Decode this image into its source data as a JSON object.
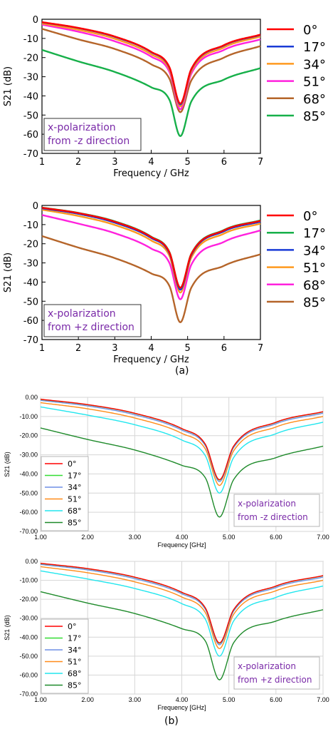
{
  "figure": {
    "label_a": "(a)",
    "label_b": "(b)"
  },
  "chart_data": [
    {
      "type": "line",
      "style": "cst",
      "xlabel": "Frequency / GHz",
      "ylabel": "S21 (dB)",
      "xlim": [
        1,
        7
      ],
      "ylim": [
        -70,
        0
      ],
      "x_ticks": [
        1,
        2,
        3,
        4,
        5,
        6,
        7
      ],
      "y_ticks": [
        0,
        -10,
        -20,
        -30,
        -40,
        -50,
        -60,
        -70
      ],
      "tick_labels_y": [
        "0",
        "-10",
        "-20",
        "-30",
        "-40",
        "-50",
        "-60",
        "-70"
      ],
      "grid": false,
      "legend_position": "outside-right",
      "annotation": [
        "x-polarization",
        "from -z direction"
      ],
      "annotation_position": "bottom-left",
      "annotation_color": "#7a2aa8",
      "x": [
        1,
        2,
        3,
        4,
        4.5,
        4.8,
        5.1,
        6,
        7
      ],
      "series": [
        {
          "name": "0°",
          "color": "#ff0000",
          "values": [
            -1.5,
            -4.5,
            -9,
            -17,
            -25,
            -44,
            -26,
            -13.5,
            -8
          ]
        },
        {
          "name": "17°",
          "color": "#1a3bd6",
          "values": [
            -1.6,
            -4.6,
            -9.2,
            -17.2,
            -25.3,
            -44.5,
            -26.3,
            -13.7,
            -8.2
          ]
        },
        {
          "name": "34°",
          "color": "#ff9a1f",
          "values": [
            -2.2,
            -5.5,
            -10.2,
            -18.3,
            -26.3,
            -45.5,
            -27.3,
            -14.7,
            -9
          ]
        },
        {
          "name": "51°",
          "color": "#ff22dd",
          "values": [
            -2.8,
            -6.5,
            -11.5,
            -19.5,
            -27.5,
            -47,
            -28.5,
            -16,
            -10.5
          ]
        },
        {
          "name": "68°",
          "color": "#b5652a",
          "values": [
            -5,
            -10.5,
            -15.5,
            -23.5,
            -31,
            -48.5,
            -32,
            -20,
            -14
          ]
        },
        {
          "name": "85°",
          "color": "#17b04a",
          "values": [
            -16,
            -22,
            -27.5,
            -35.5,
            -42,
            -61,
            -43,
            -31.5,
            -25.5
          ]
        }
      ]
    },
    {
      "type": "line",
      "style": "cst",
      "xlabel": "Frequency / GHz",
      "ylabel": "S21 (dB)",
      "xlim": [
        1,
        7
      ],
      "ylim": [
        -70,
        0
      ],
      "x_ticks": [
        1,
        2,
        3,
        4,
        5,
        6,
        7
      ],
      "y_ticks": [
        0,
        -10,
        -20,
        -30,
        -40,
        -50,
        -60,
        -70
      ],
      "tick_labels_y": [
        "0",
        "-10",
        "-20",
        "-30",
        "-40",
        "-50",
        "-60",
        "-70"
      ],
      "grid": false,
      "legend_position": "outside-right",
      "annotation": [
        "x-polarization",
        "from +z direction"
      ],
      "annotation_position": "bottom-left",
      "annotation_color": "#7a2aa8",
      "x": [
        1,
        2,
        3,
        4,
        4.5,
        4.8,
        5.1,
        6,
        7
      ],
      "series": [
        {
          "name": "0°",
          "color": "#ff0000",
          "values": [
            -1.2,
            -4,
            -8.5,
            -16.5,
            -24.5,
            -43,
            -25.5,
            -13,
            -8
          ]
        },
        {
          "name": "17°",
          "color": "#17b04a",
          "values": [
            -1.1,
            -3.9,
            -8.3,
            -16.3,
            -24.3,
            -43,
            -25.3,
            -12.8,
            -7.8
          ]
        },
        {
          "name": "34°",
          "color": "#1a3bd6",
          "values": [
            -1.5,
            -4.4,
            -9,
            -17,
            -25,
            -44,
            -26,
            -13.5,
            -8.5
          ]
        },
        {
          "name": "51°",
          "color": "#ff9a1f",
          "values": [
            -2.2,
            -5.5,
            -10.2,
            -18.3,
            -26.3,
            -45.5,
            -27.3,
            -14.7,
            -9.5
          ]
        },
        {
          "name": "68°",
          "color": "#ff22dd",
          "values": [
            -5,
            -9.5,
            -14.5,
            -22.5,
            -30,
            -49,
            -31,
            -19,
            -13
          ]
        },
        {
          "name": "85°",
          "color": "#b5652a",
          "values": [
            -16,
            -22,
            -27.5,
            -35.5,
            -42,
            -61,
            -43,
            -31.5,
            -25.5
          ]
        }
      ]
    },
    {
      "type": "line",
      "style": "hfss",
      "xlabel": "Frequency [GHz]",
      "ylabel": "S21 (dB)",
      "xlim": [
        1,
        7
      ],
      "ylim": [
        -70,
        0
      ],
      "x_ticks": [
        1,
        2,
        3,
        4,
        5,
        6,
        7
      ],
      "tick_labels_x": [
        "1.00",
        "2.00",
        "3.00",
        "4.00",
        "5.00",
        "6.00",
        "7.00"
      ],
      "y_ticks": [
        0,
        -10,
        -20,
        -30,
        -40,
        -50,
        -60,
        -70
      ],
      "tick_labels_y": [
        "0.00",
        "-10.00",
        "-20.00",
        "-30.00",
        "-40.00",
        "-50.00",
        "-60.00",
        "-70.00"
      ],
      "grid": true,
      "legend_position": "bottom-left",
      "annotation": [
        "x-polarization",
        "from -z direction"
      ],
      "annotation_position": "bottom-right",
      "annotation_color": "#7a2aa8",
      "x": [
        1,
        2,
        3,
        4,
        4.5,
        4.8,
        5.1,
        6,
        7
      ],
      "series": [
        {
          "name": "0°",
          "color": "#ff0000",
          "values": [
            -1,
            -3.8,
            -8.3,
            -16.3,
            -24.5,
            -43,
            -25.5,
            -13,
            -7.5
          ]
        },
        {
          "name": "17°",
          "color": "#33dd33",
          "values": [
            -1.1,
            -3.9,
            -8.4,
            -16.4,
            -24.6,
            -43.2,
            -25.6,
            -13.1,
            -7.6
          ]
        },
        {
          "name": "34°",
          "color": "#6f8fe6",
          "values": [
            -1.6,
            -4.5,
            -9.1,
            -17.1,
            -25.3,
            -44,
            -26.3,
            -13.8,
            -8.3
          ]
        },
        {
          "name": "51°",
          "color": "#ff8c1a",
          "values": [
            -2.8,
            -6,
            -10.8,
            -18.8,
            -27,
            -46,
            -28,
            -15.5,
            -10
          ]
        },
        {
          "name": "68°",
          "color": "#22e6ee",
          "values": [
            -5,
            -9.3,
            -14.3,
            -22.3,
            -30.5,
            -50,
            -31.5,
            -19,
            -13
          ]
        },
        {
          "name": "85°",
          "color": "#1e8a2a",
          "values": [
            -16,
            -22,
            -27.5,
            -35.5,
            -42,
            -62.5,
            -43,
            -31.5,
            -25.5
          ]
        }
      ]
    },
    {
      "type": "line",
      "style": "hfss",
      "xlabel": "Frequency [GHz]",
      "ylabel": "S21 (dB)",
      "xlim": [
        1,
        7
      ],
      "ylim": [
        -70,
        0
      ],
      "x_ticks": [
        1,
        2,
        3,
        4,
        5,
        6,
        7
      ],
      "tick_labels_x": [
        "1.00",
        "2.00",
        "3.00",
        "4.00",
        "5.00",
        "6.00",
        "7.00"
      ],
      "y_ticks": [
        0,
        -10,
        -20,
        -30,
        -40,
        -50,
        -60,
        -70
      ],
      "tick_labels_y": [
        "0.00",
        "-10.00",
        "-20.00",
        "-30.00",
        "-40.00",
        "-50.00",
        "-60.00",
        "-70.00"
      ],
      "grid": true,
      "legend_position": "bottom-left",
      "annotation": [
        "x-polarization",
        "from +z direction"
      ],
      "annotation_position": "bottom-right",
      "annotation_color": "#7a2aa8",
      "x": [
        1,
        2,
        3,
        4,
        4.5,
        4.8,
        5.1,
        6,
        7
      ],
      "series": [
        {
          "name": "0°",
          "color": "#ff0000",
          "values": [
            -1,
            -3.8,
            -8.3,
            -16.3,
            -24.5,
            -43,
            -25.5,
            -13,
            -7.5
          ]
        },
        {
          "name": "17°",
          "color": "#33dd33",
          "values": [
            -1.1,
            -3.9,
            -8.4,
            -16.4,
            -24.6,
            -43.2,
            -25.6,
            -13.1,
            -7.6
          ]
        },
        {
          "name": "34°",
          "color": "#6f8fe6",
          "values": [
            -1.6,
            -4.5,
            -9.1,
            -17.1,
            -25.3,
            -44,
            -26.3,
            -13.8,
            -8.3
          ]
        },
        {
          "name": "51°",
          "color": "#ff8c1a",
          "values": [
            -2.8,
            -6,
            -10.8,
            -18.8,
            -27,
            -46,
            -28,
            -15.5,
            -10
          ]
        },
        {
          "name": "68°",
          "color": "#22e6ee",
          "values": [
            -5,
            -9.3,
            -14.3,
            -22.3,
            -30.5,
            -50,
            -31.5,
            -19,
            -13
          ]
        },
        {
          "name": "85°",
          "color": "#1e8a2a",
          "values": [
            -16,
            -22,
            -27.5,
            -35.5,
            -42,
            -62.5,
            -43,
            -31.5,
            -25.5
          ]
        }
      ]
    }
  ]
}
